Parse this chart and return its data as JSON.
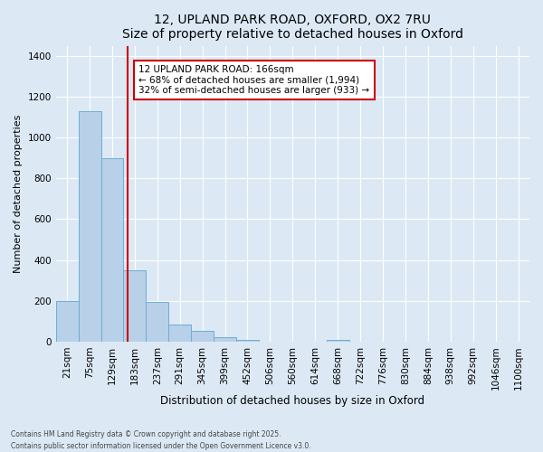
{
  "title": "12, UPLAND PARK ROAD, OXFORD, OX2 7RU",
  "subtitle": "Size of property relative to detached houses in Oxford",
  "xlabel": "Distribution of detached houses by size in Oxford",
  "ylabel": "Number of detached properties",
  "bar_color": "#b8d0e8",
  "bar_edge_color": "#6baed6",
  "background_color": "#dce9f5",
  "grid_color": "#ffffff",
  "categories": [
    "21sqm",
    "75sqm",
    "129sqm",
    "183sqm",
    "237sqm",
    "291sqm",
    "345sqm",
    "399sqm",
    "452sqm",
    "506sqm",
    "560sqm",
    "614sqm",
    "668sqm",
    "722sqm",
    "776sqm",
    "830sqm",
    "884sqm",
    "938sqm",
    "992sqm",
    "1046sqm",
    "1100sqm"
  ],
  "values": [
    200,
    1130,
    900,
    350,
    195,
    85,
    55,
    20,
    10,
    0,
    0,
    0,
    10,
    0,
    0,
    0,
    0,
    0,
    0,
    0,
    0
  ],
  "ylim": [
    0,
    1450
  ],
  "yticks": [
    0,
    200,
    400,
    600,
    800,
    1000,
    1200,
    1400
  ],
  "property_line_x": 2.67,
  "annotation_title": "12 UPLAND PARK ROAD: 166sqm",
  "annotation_line1": "← 68% of detached houses are smaller (1,994)",
  "annotation_line2": "32% of semi-detached houses are larger (933) →",
  "annotation_box_color": "#ffffff",
  "annotation_border_color": "#cc0000",
  "vline_color": "#cc0000",
  "footnote1": "Contains HM Land Registry data © Crown copyright and database right 2025.",
  "footnote2": "Contains public sector information licensed under the Open Government Licence v3.0."
}
